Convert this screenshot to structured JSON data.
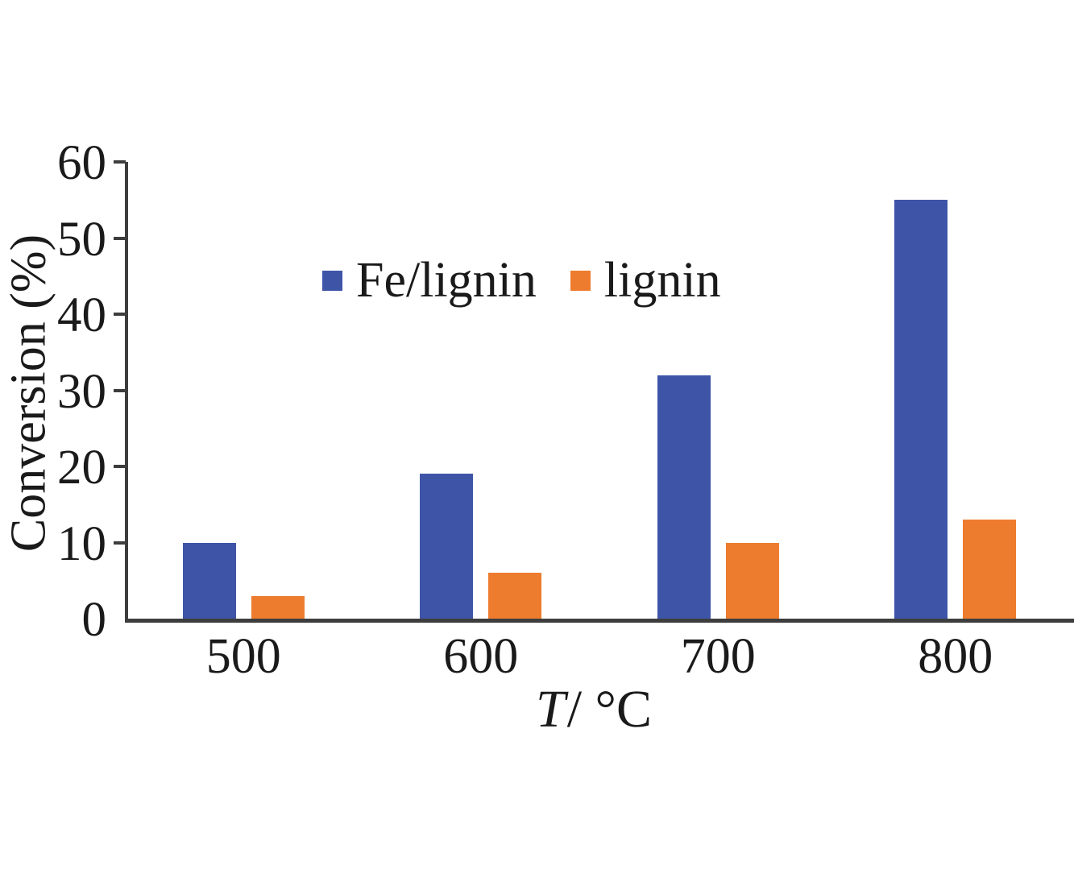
{
  "chart_data": {
    "type": "bar",
    "title": "",
    "categories": [
      "500",
      "600",
      "700",
      "800"
    ],
    "series": [
      {
        "name": "Fe/lignin",
        "color": "#3E55A7",
        "values": [
          10,
          19,
          32,
          55
        ]
      },
      {
        "name": "lignin",
        "color": "#EE7C2E",
        "values": [
          3,
          6,
          10,
          13
        ]
      }
    ],
    "xlabel_var": "T",
    "xlabel_rest": "/ °C",
    "ylabel": "Conversion (%)",
    "ylim": [
      0,
      60
    ],
    "ytick_step": 10,
    "yticks": [
      "0",
      "10",
      "20",
      "30",
      "40",
      "50",
      "60"
    ],
    "grid": false,
    "legend_position": "inside-top-center",
    "axis_color": "#3d3d3d",
    "background_color": "#ffffff"
  }
}
